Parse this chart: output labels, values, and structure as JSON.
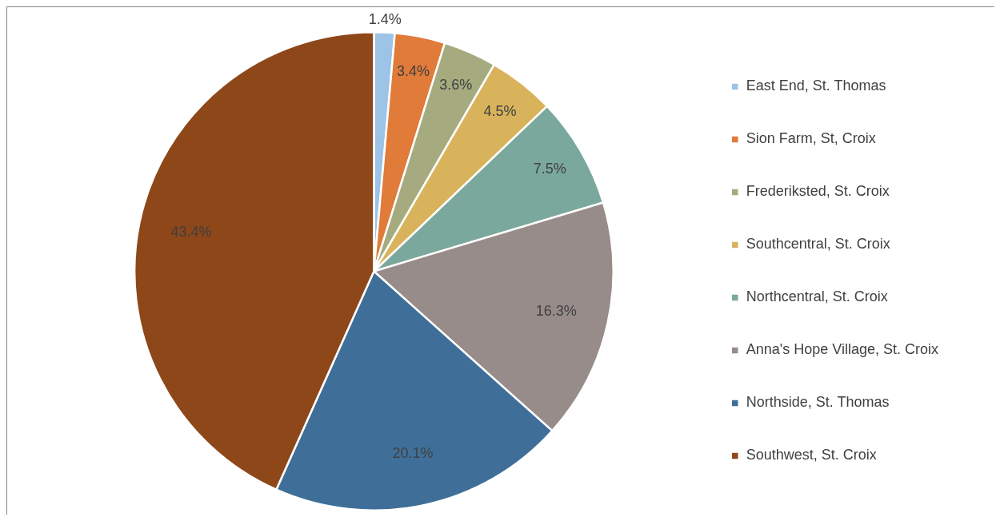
{
  "chart_data": {
    "type": "pie",
    "categories": [
      "East End, St. Thomas",
      "Sion Farm, St, Croix",
      "Frederiksted, St. Croix",
      "Southcentral, St. Croix",
      "Northcentral, St. Croix",
      "Anna's Hope Village, St. Croix",
      "Northside, St. Thomas",
      "Southwest, St. Croix"
    ],
    "values": [
      1.4,
      3.4,
      3.6,
      4.5,
      7.5,
      16.3,
      20.1,
      43.4
    ],
    "colors": [
      "#9dc3e6",
      "#e07b39",
      "#a5ab7f",
      "#d9b35c",
      "#7ba89c",
      "#978c8a",
      "#3f6f98",
      "#8e4719"
    ],
    "value_labels": [
      "1.4%",
      "3.4%",
      "3.6%",
      "4.5%",
      "7.5%",
      "16.3%",
      "20.1%",
      "43.4%"
    ],
    "legend": "right"
  }
}
